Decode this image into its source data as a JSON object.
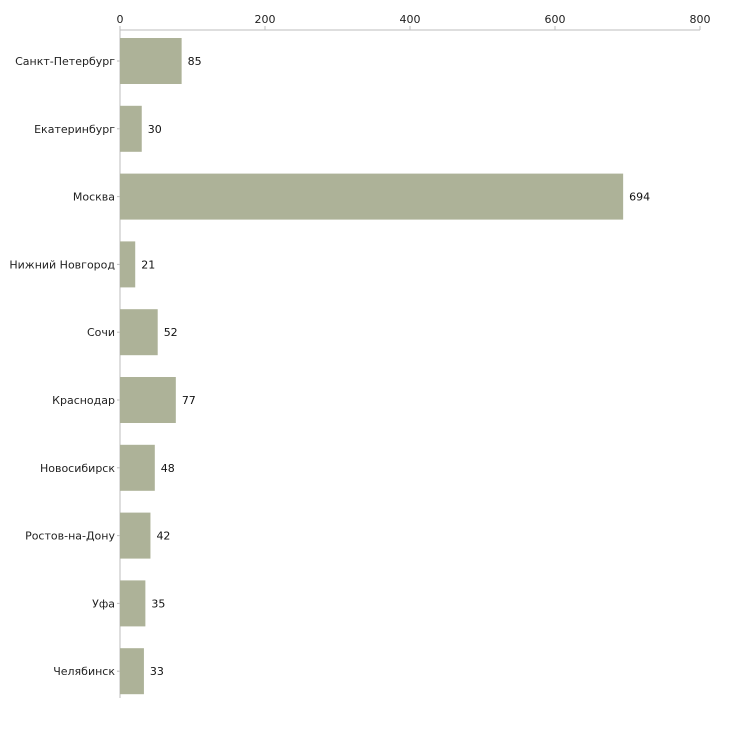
{
  "chart_data": {
    "type": "bar",
    "orientation": "horizontal",
    "title": "",
    "xlabel": "",
    "ylabel": "",
    "xlim": [
      0,
      800
    ],
    "ticks": [
      0,
      200,
      400,
      600,
      800
    ],
    "tick_labels": [
      "0",
      "200",
      "400",
      "600",
      "800"
    ],
    "categories": [
      "Санкт-Петербург",
      "Екатеринбург",
      "Москва",
      "Нижний Новгород",
      "Сочи",
      "Краснодар",
      "Новосибирск",
      "Ростов-на-Дону",
      "Уфа",
      "Челябинск"
    ],
    "values": [
      85,
      30,
      694,
      21,
      52,
      77,
      48,
      42,
      35,
      33
    ],
    "value_labels": [
      "85",
      "30",
      "694",
      "21",
      "52",
      "77",
      "48",
      "42",
      "35",
      "33"
    ],
    "bar_color": "#adb298",
    "grid": false,
    "legend": "none"
  }
}
